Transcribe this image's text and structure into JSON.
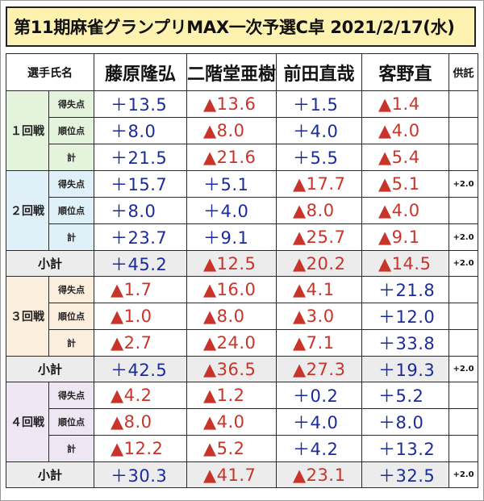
{
  "title": "第11期麻雀グランプリMAX一次予選C卓 2021/2/17(水)",
  "headers": {
    "player_col": "選手氏名",
    "players": [
      "藤原隆弘",
      "二階堂亜樹",
      "前田直哉",
      "客野直"
    ],
    "kyotaku": "供託"
  },
  "rounds": [
    {
      "label": "１回戦",
      "rows": [
        {
          "label": "得失点",
          "values": [
            "＋13.5",
            "▲13.6",
            "＋1.5",
            "▲1.4"
          ],
          "kyotaku": ""
        },
        {
          "label": "順位点",
          "values": [
            "＋8.0",
            "▲8.0",
            "＋4.0",
            "▲4.0"
          ],
          "kyotaku": ""
        },
        {
          "label": "計",
          "values": [
            "＋21.5",
            "▲21.6",
            "＋5.5",
            "▲5.4"
          ],
          "kyotaku": ""
        }
      ]
    },
    {
      "label": "２回戦",
      "rows": [
        {
          "label": "得失点",
          "values": [
            "＋15.7",
            "＋5.1",
            "▲17.7",
            "▲5.1"
          ],
          "kyotaku": "+2.0"
        },
        {
          "label": "順位点",
          "values": [
            "＋8.0",
            "＋4.0",
            "▲8.0",
            "▲4.0"
          ],
          "kyotaku": ""
        },
        {
          "label": "計",
          "values": [
            "＋23.7",
            "＋9.1",
            "▲25.7",
            "▲9.1"
          ],
          "kyotaku": "+2.0"
        }
      ],
      "subtotal": {
        "label": "小計",
        "values": [
          "＋45.2",
          "▲12.5",
          "▲20.2",
          "▲14.5"
        ],
        "kyotaku": "+2.0"
      }
    },
    {
      "label": "３回戦",
      "rows": [
        {
          "label": "得失点",
          "values": [
            "▲1.7",
            "▲16.0",
            "▲4.1",
            "＋21.8"
          ],
          "kyotaku": ""
        },
        {
          "label": "順位点",
          "values": [
            "▲1.0",
            "▲8.0",
            "▲3.0",
            "＋12.0"
          ],
          "kyotaku": ""
        },
        {
          "label": "計",
          "values": [
            "▲2.7",
            "▲24.0",
            "▲7.1",
            "＋33.8"
          ],
          "kyotaku": ""
        }
      ],
      "subtotal": {
        "label": "小計",
        "values": [
          "＋42.5",
          "▲36.5",
          "▲27.3",
          "＋19.3"
        ],
        "kyotaku": "+2.0"
      }
    },
    {
      "label": "４回戦",
      "rows": [
        {
          "label": "得失点",
          "values": [
            "▲4.2",
            "▲1.2",
            "＋0.2",
            "＋5.2"
          ],
          "kyotaku": ""
        },
        {
          "label": "順位点",
          "values": [
            "▲8.0",
            "▲4.0",
            "＋4.0",
            "＋8.0"
          ],
          "kyotaku": ""
        },
        {
          "label": "計",
          "values": [
            "▲12.2",
            "▲5.2",
            "＋4.2",
            "＋13.2"
          ],
          "kyotaku": ""
        }
      ],
      "subtotal": {
        "label": "小計",
        "values": [
          "＋30.3",
          "▲41.7",
          "▲23.1",
          "＋32.5"
        ],
        "kyotaku": "+2.0"
      }
    }
  ],
  "colors": {
    "positive": "#1a2b9c",
    "negative": "#c8342a",
    "title_bg": "#fdf2b0",
    "round1_bg": "#e3f3dc",
    "round2_bg": "#dff0f9",
    "round3_bg": "#fbeedd",
    "round4_bg": "#efe6f4",
    "subtotal_bg": "#ececec"
  }
}
